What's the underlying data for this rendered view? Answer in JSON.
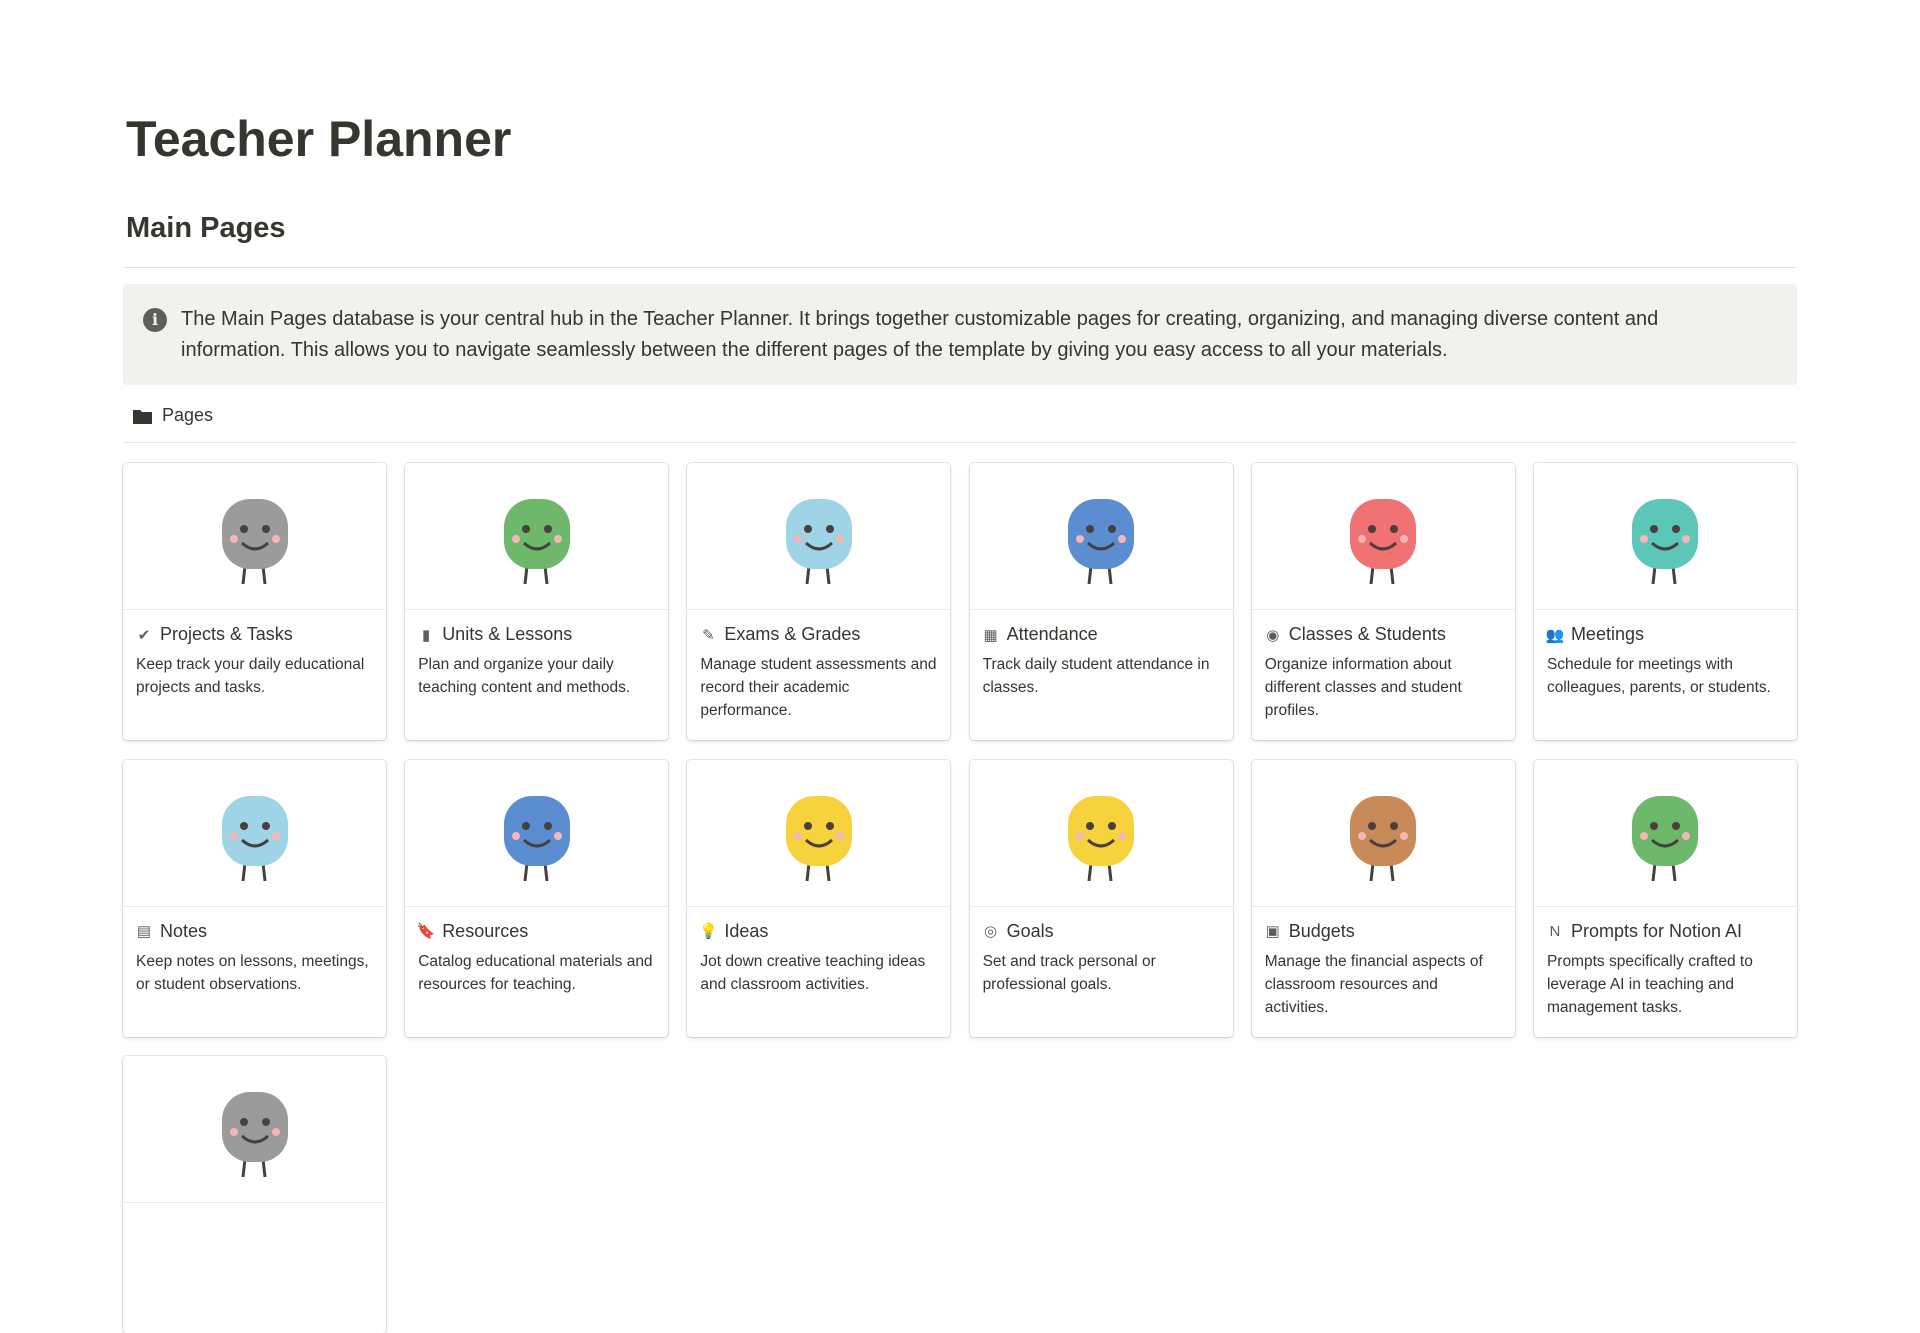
{
  "page": {
    "title": "Teacher Planner",
    "section": "Main Pages",
    "callout": "The Main Pages database is your central hub in the Teacher Planner. It brings  together customizable pages for creating, organizing, and managing diverse content and information. This allows you to navigate seamlessly between the different pages of the template by giving you easy access to all your materials.",
    "view_tab": "Pages"
  },
  "cards": [
    {
      "name": "Projects & Tasks",
      "icon": "check-circle",
      "glyph": "✔",
      "desc": "Keep track your daily educational projects and tasks.",
      "color": "#9b9b9b"
    },
    {
      "name": "Units & Lessons",
      "icon": "book",
      "glyph": "▮",
      "desc": "Plan and organize your daily teaching content and methods.",
      "color": "#6db86b"
    },
    {
      "name": "Exams & Grades",
      "icon": "pencil-lines",
      "glyph": "✎",
      "desc": "Manage student assessments and record their academic performance.",
      "color": "#9fd4e6"
    },
    {
      "name": "Attendance",
      "icon": "calendar",
      "glyph": "▦",
      "desc": "Track daily student attendance in classes.",
      "color": "#5a8ed1"
    },
    {
      "name": "Classes & Students",
      "icon": "user-circle",
      "glyph": "◉",
      "desc": "Organize information about different classes and student profiles.",
      "color": "#f07272"
    },
    {
      "name": "Meetings",
      "icon": "people",
      "glyph": "👥",
      "desc": "Schedule for meetings with colleagues, parents, or students.",
      "color": "#5cc6b9"
    },
    {
      "name": "Notes",
      "icon": "note",
      "glyph": "▤",
      "desc": "Keep notes on lessons, meetings, or student observations.",
      "color": "#9fd4e6"
    },
    {
      "name": "Resources",
      "icon": "bookmark",
      "glyph": "🔖",
      "desc": "Catalog educational materials and resources for teaching.",
      "color": "#5a8ed1"
    },
    {
      "name": "Ideas",
      "icon": "lightbulb",
      "glyph": "💡",
      "desc": "Jot down creative teaching ideas and classroom activities.",
      "color": "#f6d23c"
    },
    {
      "name": "Goals",
      "icon": "target",
      "glyph": "◎",
      "desc": "Set and track personal or professional goals.",
      "color": "#f6d23c"
    },
    {
      "name": "Budgets",
      "icon": "money",
      "glyph": "▣",
      "desc": "Manage the financial aspects of classroom resources and activities.",
      "color": "#c98a5a"
    },
    {
      "name": "Prompts for Notion AI",
      "icon": "notion-logo",
      "glyph": "N",
      "desc": "Prompts specifically crafted to leverage AI in teaching and management tasks.",
      "color": "#6db86b"
    },
    {
      "name": "",
      "icon": "",
      "glyph": "",
      "desc": "",
      "color": "#9b9b9b"
    }
  ]
}
